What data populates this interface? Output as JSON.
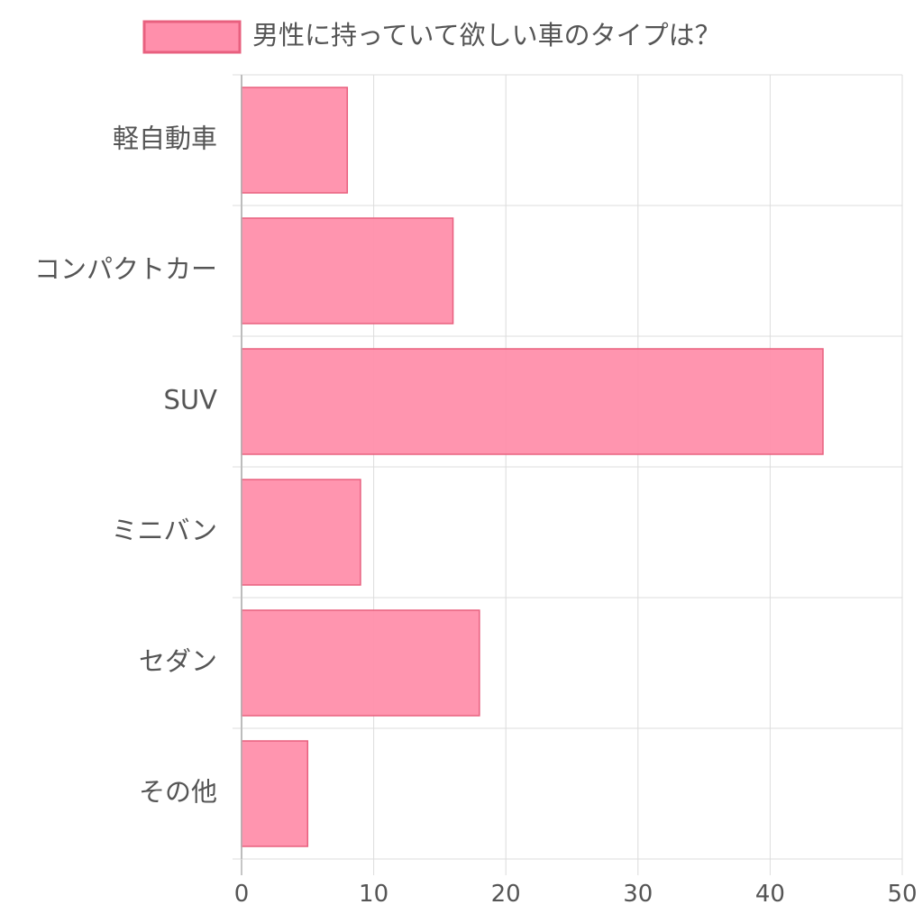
{
  "chart_data": {
    "type": "bar",
    "orientation": "horizontal",
    "categories": [
      "軽自動車",
      "コンパクトカー",
      "SUV",
      "ミニバン",
      "セダン",
      "その他"
    ],
    "series": [
      {
        "name": "男性に持っていて欲しい車のタイプは？",
        "values": [
          8,
          16,
          44,
          9,
          18,
          5
        ],
        "fill": "#ff8fab",
        "border": "#e8607f"
      }
    ],
    "xlim": [
      0,
      50
    ],
    "x_ticks": [
      0,
      10,
      20,
      30,
      40,
      50
    ],
    "grid": true,
    "legend_position": "top"
  }
}
